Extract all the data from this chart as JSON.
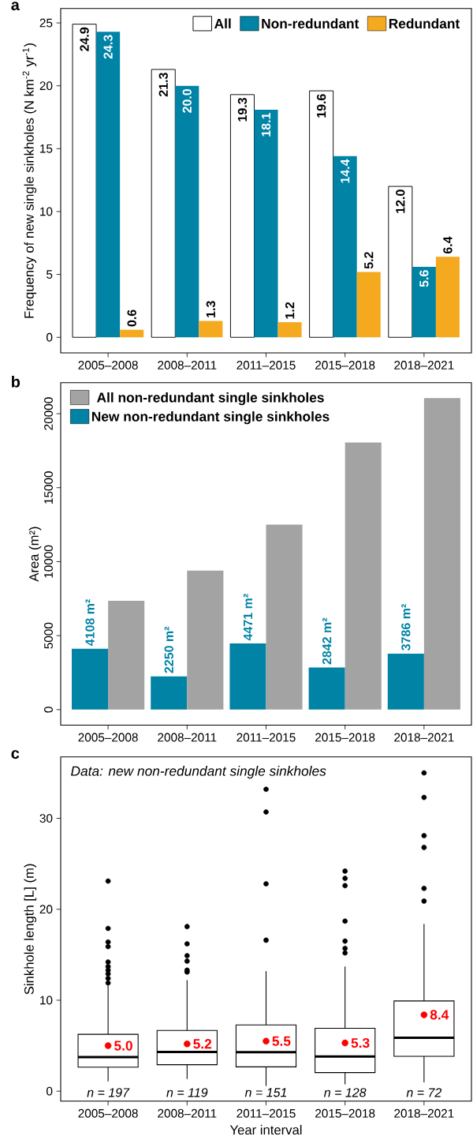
{
  "chart_data": [
    {
      "type": "bar",
      "title": "a",
      "ylabel": "Frequency of new single sinkholes (N km$^{-2}$ yr$^{-1}$)",
      "categories": [
        "2005–2008",
        "2008–2011",
        "2011–2015",
        "2015–2018",
        "2018–2021"
      ],
      "series": [
        {
          "name": "All",
          "color": "#ffffff",
          "values": [
            24.9,
            21.3,
            19.3,
            19.6,
            12.0
          ],
          "value_labels": [
            "24.9",
            "21.3",
            "19.3",
            "19.6",
            "12.0"
          ]
        },
        {
          "name": "Non-redundant",
          "color": "#0083a5",
          "values": [
            24.3,
            20.0,
            18.1,
            14.4,
            5.6
          ],
          "value_labels": [
            "24.3",
            "20.0",
            "18.1",
            "14.4",
            "5.6"
          ]
        },
        {
          "name": "Redundant",
          "color": "#f5a91e",
          "values": [
            0.6,
            1.3,
            1.2,
            5.2,
            6.4
          ],
          "value_labels": [
            "0.6",
            "1.3",
            "1.2",
            "5.2",
            "6.4"
          ]
        }
      ],
      "ylim": [
        -1.245,
        26.145
      ],
      "yticks": [
        0,
        5,
        10,
        15,
        20,
        25
      ],
      "legend": "top right"
    },
    {
      "type": "bar",
      "title": "b",
      "ylabel": "Area (m²)",
      "categories": [
        "2005–2008",
        "2008–2011",
        "2011–2015",
        "2015–2018",
        "2018–2021"
      ],
      "series": [
        {
          "name": "New non-redundant single sinkholes",
          "color": "#0083a5",
          "values": [
            4108,
            2250,
            4471,
            2842,
            3786
          ],
          "value_labels": [
            "4108 m²",
            "2250 m²",
            "4471 m²",
            "2842 m²",
            "3786 m²"
          ]
        },
        {
          "name": "All non-redundant single sinkholes",
          "color": "#a3a3a3",
          "values": [
            7350,
            9400,
            12500,
            18050,
            21050
          ]
        }
      ],
      "ylim": [
        -1050,
        22100
      ],
      "yticks": [
        0,
        5000,
        10000,
        15000,
        20000
      ],
      "legend": "top left"
    },
    {
      "type": "box",
      "title": "c",
      "xlabel": "Year interval",
      "ylabel": "Sinkhole length [L] (m)",
      "categories": [
        "2005–2008",
        "2008–2011",
        "2011–2015",
        "2015–2018",
        "2018–2021"
      ],
      "boxes": [
        {
          "low": 1.07,
          "q1": 2.64,
          "median": 3.74,
          "q3": 6.25,
          "high": 11.6,
          "outliers": [
            23.1,
            17.9,
            16.4,
            15.9,
            14.2,
            13.7,
            13.3,
            12.9,
            12.4,
            11.9
          ]
        },
        {
          "low": 1.34,
          "q1": 2.91,
          "median": 4.31,
          "q3": 6.68,
          "high": 12.2,
          "outliers": [
            18.1,
            16.2,
            14.9,
            14.3,
            13.3,
            13.1
          ]
        },
        {
          "low": 0.57,
          "q1": 2.67,
          "median": 4.28,
          "q3": 7.28,
          "high": 13.2,
          "outliers": [
            33.2,
            30.7,
            22.8,
            16.6
          ]
        },
        {
          "low": 0.74,
          "q1": 2.04,
          "median": 3.81,
          "q3": 6.92,
          "high": 13.7,
          "outliers": [
            24.2,
            23.4,
            22.6,
            18.7,
            16.5,
            15.7,
            15.2
          ]
        },
        {
          "low": 0.97,
          "q1": 3.84,
          "median": 5.88,
          "q3": 9.92,
          "high": 18.4,
          "outliers": [
            35.0,
            32.3,
            28.1,
            26.8,
            22.3,
            20.9
          ]
        }
      ],
      "series": [
        {
          "type": "scatter",
          "color": "#ff0000",
          "x": [
            "2005–2008",
            "2008–2011",
            "2011–2015",
            "2015–2018",
            "2018–2021"
          ],
          "values": [
            5.0,
            5.2,
            5.5,
            5.3,
            8.4
          ],
          "value_labels": [
            "5.0",
            "5.2",
            "5.5",
            "5.3",
            "8.4"
          ]
        }
      ],
      "ylim": [
        -1.1,
        36.75
      ],
      "yticks": [
        0,
        10,
        20,
        30
      ],
      "annotations": [
        "Data: new non-redundant single sinkholes",
        "n = 197",
        "n = 119",
        "n = 151",
        "n = 128",
        "n = 72"
      ]
    }
  ]
}
